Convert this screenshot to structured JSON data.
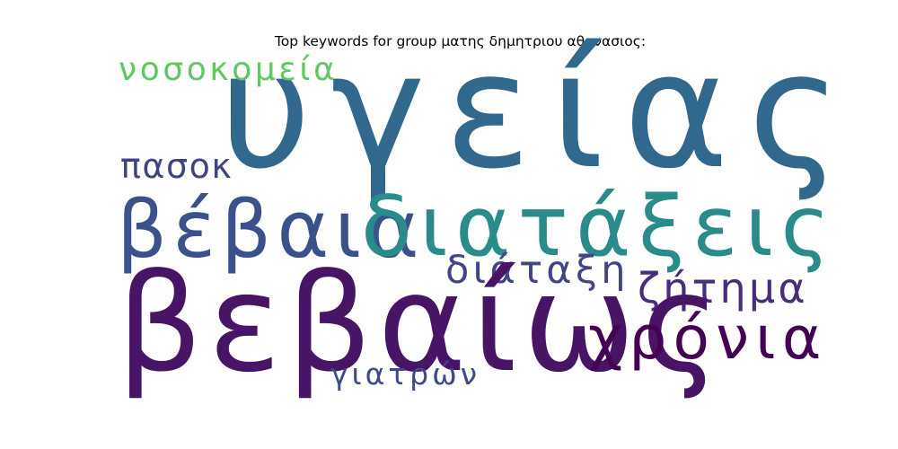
{
  "title": "Top keywords for group ματης δημητριου αθανασιος:",
  "words": [
    {
      "id": "ygeias",
      "text": "υγείας",
      "color": "#31688e"
    },
    {
      "id": "nosokomeia",
      "text": "νοσοκομεία",
      "color": "#5ec962"
    },
    {
      "id": "pasok",
      "text": "πασοκ",
      "color": "#404387"
    },
    {
      "id": "vevaia",
      "text": "βέβαια",
      "color": "#3b518b"
    },
    {
      "id": "diataxeis",
      "text": "διατάξεις",
      "color": "#2a8b8b"
    },
    {
      "id": "diataxi",
      "text": "διάταξη",
      "color": "#414487"
    },
    {
      "id": "zitima",
      "text": "ζήτημα",
      "color": "#472d7b"
    },
    {
      "id": "vevaios",
      "text": "βεβαίως",
      "color": "#471466"
    },
    {
      "id": "xronia",
      "text": "χρόνια",
      "color": "#440154"
    },
    {
      "id": "giatron",
      "text": "γιατρών",
      "color": "#3e4a89"
    }
  ]
}
